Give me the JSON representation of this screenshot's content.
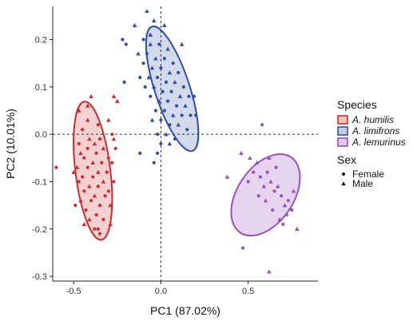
{
  "chart_data": {
    "type": "scatter",
    "title": "",
    "xlabel": "PC1 (87.02%)",
    "ylabel": "PC2 (10.01%)",
    "xlim": [
      -0.62,
      0.9
    ],
    "ylim": [
      -0.31,
      0.27
    ],
    "xticks": [
      -0.5,
      0.0,
      0.5
    ],
    "yticks": [
      -0.3,
      -0.2,
      -0.1,
      0.0,
      0.1,
      0.2
    ],
    "xtick_labels": [
      "-0.5",
      "0.0",
      "0.5"
    ],
    "ytick_labels": [
      "-0.3",
      "-0.2",
      "-0.1",
      "0.0",
      "0.1",
      "0.2"
    ],
    "reference_lines": {
      "x": 0.0,
      "y": 0.0,
      "style": "dashed"
    },
    "grid": false,
    "legend_placement": "right",
    "legend": {
      "species_title": "Species",
      "sex_title": "Sex",
      "sex_entries": [
        {
          "label": "Female",
          "shape": "circle"
        },
        {
          "label": "Male",
          "shape": "triangle"
        }
      ]
    },
    "series": [
      {
        "name": "A. humilis",
        "color": "#cc2e2e",
        "fill": "#f0c2c0",
        "ellipse": {
          "cx": -0.39,
          "cy": -0.077,
          "rx": 0.1,
          "ry": 0.147,
          "angle_deg": -7
        },
        "points": [
          {
            "x": -0.42,
            "y": 0.03,
            "sex": "male"
          },
          {
            "x": -0.36,
            "y": 0.02,
            "sex": "female"
          },
          {
            "x": -0.3,
            "y": 0.03,
            "sex": "male"
          },
          {
            "x": -0.45,
            "y": 0.01,
            "sex": "female"
          },
          {
            "x": -0.28,
            "y": 0.0,
            "sex": "female"
          },
          {
            "x": -0.41,
            "y": -0.01,
            "sex": "male"
          },
          {
            "x": -0.35,
            "y": -0.01,
            "sex": "female"
          },
          {
            "x": -0.47,
            "y": -0.02,
            "sex": "female"
          },
          {
            "x": -0.38,
            "y": -0.02,
            "sex": "male"
          },
          {
            "x": -0.42,
            "y": -0.03,
            "sex": "female"
          },
          {
            "x": -0.33,
            "y": -0.03,
            "sex": "male"
          },
          {
            "x": -0.46,
            "y": -0.04,
            "sex": "male"
          },
          {
            "x": -0.37,
            "y": -0.04,
            "sex": "female"
          },
          {
            "x": -0.3,
            "y": -0.05,
            "sex": "female"
          },
          {
            "x": -0.44,
            "y": -0.05,
            "sex": "female"
          },
          {
            "x": -0.39,
            "y": -0.06,
            "sex": "male"
          },
          {
            "x": -0.34,
            "y": -0.06,
            "sex": "female"
          },
          {
            "x": -0.48,
            "y": -0.07,
            "sex": "male"
          },
          {
            "x": -0.42,
            "y": -0.07,
            "sex": "female"
          },
          {
            "x": -0.36,
            "y": -0.08,
            "sex": "male"
          },
          {
            "x": -0.31,
            "y": -0.08,
            "sex": "female"
          },
          {
            "x": -0.45,
            "y": -0.09,
            "sex": "female"
          },
          {
            "x": -0.39,
            "y": -0.09,
            "sex": "female"
          },
          {
            "x": -0.33,
            "y": -0.1,
            "sex": "male"
          },
          {
            "x": -0.47,
            "y": -0.1,
            "sex": "female"
          },
          {
            "x": -0.41,
            "y": -0.11,
            "sex": "male"
          },
          {
            "x": -0.36,
            "y": -0.11,
            "sex": "female"
          },
          {
            "x": -0.3,
            "y": -0.12,
            "sex": "female"
          },
          {
            "x": -0.44,
            "y": -0.12,
            "sex": "female"
          },
          {
            "x": -0.38,
            "y": -0.13,
            "sex": "male"
          },
          {
            "x": -0.32,
            "y": -0.13,
            "sex": "female"
          },
          {
            "x": -0.46,
            "y": -0.14,
            "sex": "male"
          },
          {
            "x": -0.4,
            "y": -0.14,
            "sex": "female"
          },
          {
            "x": -0.35,
            "y": -0.15,
            "sex": "female"
          },
          {
            "x": -0.29,
            "y": -0.15,
            "sex": "male"
          },
          {
            "x": -0.43,
            "y": -0.16,
            "sex": "female"
          },
          {
            "x": -0.37,
            "y": -0.17,
            "sex": "female"
          },
          {
            "x": -0.41,
            "y": -0.18,
            "sex": "male"
          },
          {
            "x": -0.33,
            "y": -0.18,
            "sex": "female"
          },
          {
            "x": -0.38,
            "y": -0.2,
            "sex": "female"
          },
          {
            "x": -0.44,
            "y": -0.19,
            "sex": "male"
          },
          {
            "x": -0.49,
            "y": -0.15,
            "sex": "female"
          },
          {
            "x": -0.5,
            "y": -0.08,
            "sex": "male"
          },
          {
            "x": -0.35,
            "y": -0.21,
            "sex": "female"
          },
          {
            "x": -0.28,
            "y": -0.06,
            "sex": "female"
          },
          {
            "x": -0.27,
            "y": -0.1,
            "sex": "female"
          },
          {
            "x": -0.27,
            "y": -0.01,
            "sex": "male"
          },
          {
            "x": -0.29,
            "y": -0.19,
            "sex": "male"
          },
          {
            "x": -0.42,
            "y": 0.06,
            "sex": "male"
          },
          {
            "x": -0.4,
            "y": 0.08,
            "sex": "male"
          },
          {
            "x": -0.25,
            "y": 0.07,
            "sex": "male"
          },
          {
            "x": -0.27,
            "y": 0.08,
            "sex": "male"
          },
          {
            "x": -0.6,
            "y": -0.07,
            "sex": "female"
          },
          {
            "x": -0.36,
            "y": -0.2,
            "sex": "female"
          },
          {
            "x": -0.47,
            "y": 0.05,
            "sex": "male"
          },
          {
            "x": -0.26,
            "y": -0.03,
            "sex": "female"
          }
        ]
      },
      {
        "name": "A. limifrons",
        "color": "#2f4fa6",
        "fill": "#c3cde4",
        "ellipse": {
          "cx": 0.065,
          "cy": 0.096,
          "rx": 0.1,
          "ry": 0.138,
          "angle_deg": -18
        },
        "points": [
          {
            "x": -0.08,
            "y": 0.26,
            "sex": "male"
          },
          {
            "x": -0.04,
            "y": 0.24,
            "sex": "male"
          },
          {
            "x": 0.02,
            "y": 0.23,
            "sex": "male"
          },
          {
            "x": -0.1,
            "y": 0.2,
            "sex": "female"
          },
          {
            "x": -0.06,
            "y": 0.19,
            "sex": "male"
          },
          {
            "x": -0.01,
            "y": 0.19,
            "sex": "female"
          },
          {
            "x": 0.04,
            "y": 0.18,
            "sex": "male"
          },
          {
            "x": -0.13,
            "y": 0.17,
            "sex": "male"
          },
          {
            "x": -0.08,
            "y": 0.17,
            "sex": "female"
          },
          {
            "x": -0.03,
            "y": 0.16,
            "sex": "male"
          },
          {
            "x": 0.02,
            "y": 0.16,
            "sex": "female"
          },
          {
            "x": 0.07,
            "y": 0.15,
            "sex": "female"
          },
          {
            "x": -0.1,
            "y": 0.15,
            "sex": "female"
          },
          {
            "x": -0.05,
            "y": 0.14,
            "sex": "male"
          },
          {
            "x": 0.0,
            "y": 0.14,
            "sex": "female"
          },
          {
            "x": 0.05,
            "y": 0.13,
            "sex": "male"
          },
          {
            "x": 0.1,
            "y": 0.13,
            "sex": "female"
          },
          {
            "x": -0.12,
            "y": 0.12,
            "sex": "female"
          },
          {
            "x": -0.07,
            "y": 0.12,
            "sex": "male"
          },
          {
            "x": -0.02,
            "y": 0.12,
            "sex": "female"
          },
          {
            "x": 0.03,
            "y": 0.11,
            "sex": "female"
          },
          {
            "x": 0.08,
            "y": 0.11,
            "sex": "male"
          },
          {
            "x": 0.13,
            "y": 0.1,
            "sex": "female"
          },
          {
            "x": -0.09,
            "y": 0.1,
            "sex": "female"
          },
          {
            "x": -0.04,
            "y": 0.1,
            "sex": "male"
          },
          {
            "x": 0.01,
            "y": 0.09,
            "sex": "female"
          },
          {
            "x": 0.06,
            "y": 0.09,
            "sex": "female"
          },
          {
            "x": 0.11,
            "y": 0.08,
            "sex": "male"
          },
          {
            "x": 0.16,
            "y": 0.08,
            "sex": "female"
          },
          {
            "x": -0.06,
            "y": 0.08,
            "sex": "female"
          },
          {
            "x": -0.01,
            "y": 0.07,
            "sex": "male"
          },
          {
            "x": 0.04,
            "y": 0.07,
            "sex": "female"
          },
          {
            "x": 0.09,
            "y": 0.06,
            "sex": "female"
          },
          {
            "x": 0.14,
            "y": 0.06,
            "sex": "male"
          },
          {
            "x": -0.03,
            "y": 0.05,
            "sex": "female"
          },
          {
            "x": 0.02,
            "y": 0.05,
            "sex": "female"
          },
          {
            "x": 0.07,
            "y": 0.04,
            "sex": "male"
          },
          {
            "x": 0.12,
            "y": 0.04,
            "sex": "female"
          },
          {
            "x": 0.17,
            "y": 0.04,
            "sex": "female"
          },
          {
            "x": -0.05,
            "y": 0.03,
            "sex": "male"
          },
          {
            "x": 0.0,
            "y": 0.03,
            "sex": "female"
          },
          {
            "x": 0.05,
            "y": 0.02,
            "sex": "female"
          },
          {
            "x": 0.1,
            "y": 0.02,
            "sex": "male"
          },
          {
            "x": 0.15,
            "y": 0.01,
            "sex": "female"
          },
          {
            "x": -0.02,
            "y": 0.0,
            "sex": "female"
          },
          {
            "x": 0.03,
            "y": 0.0,
            "sex": "male"
          },
          {
            "x": 0.08,
            "y": -0.01,
            "sex": "female"
          },
          {
            "x": 0.0,
            "y": -0.02,
            "sex": "female"
          },
          {
            "x": 0.05,
            "y": -0.02,
            "sex": "male"
          },
          {
            "x": -0.22,
            "y": 0.2,
            "sex": "female"
          },
          {
            "x": -0.2,
            "y": 0.19,
            "sex": "female"
          },
          {
            "x": -0.21,
            "y": 0.11,
            "sex": "female"
          },
          {
            "x": -0.06,
            "y": 0.21,
            "sex": "male"
          },
          {
            "x": -0.15,
            "y": 0.23,
            "sex": "male"
          },
          {
            "x": -0.02,
            "y": -0.04,
            "sex": "female"
          },
          {
            "x": -0.12,
            "y": -0.04,
            "sex": "female"
          },
          {
            "x": 0.19,
            "y": 0.08,
            "sex": "female"
          },
          {
            "x": 0.2,
            "y": 0.04,
            "sex": "female"
          },
          {
            "x": -0.04,
            "y": -0.06,
            "sex": "female"
          },
          {
            "x": 0.12,
            "y": 0.19,
            "sex": "male"
          }
        ]
      },
      {
        "name": "A. lemurinus",
        "color": "#9c4fc0",
        "fill": "#dcc7e8",
        "ellipse": {
          "cx": 0.6,
          "cy": -0.128,
          "rx": 0.16,
          "ry": 0.096,
          "angle_deg": 34
        },
        "points": [
          {
            "x": 0.51,
            "y": -0.05,
            "sex": "male"
          },
          {
            "x": 0.53,
            "y": -0.08,
            "sex": "female"
          },
          {
            "x": 0.55,
            "y": -0.06,
            "sex": "male"
          },
          {
            "x": 0.57,
            "y": -0.09,
            "sex": "female"
          },
          {
            "x": 0.59,
            "y": -0.11,
            "sex": "male"
          },
          {
            "x": 0.61,
            "y": -0.08,
            "sex": "female"
          },
          {
            "x": 0.63,
            "y": -0.1,
            "sex": "male"
          },
          {
            "x": 0.65,
            "y": -0.12,
            "sex": "female"
          },
          {
            "x": 0.67,
            "y": -0.11,
            "sex": "male"
          },
          {
            "x": 0.69,
            "y": -0.13,
            "sex": "female"
          },
          {
            "x": 0.71,
            "y": -0.15,
            "sex": "male"
          },
          {
            "x": 0.73,
            "y": -0.14,
            "sex": "female"
          },
          {
            "x": 0.75,
            "y": -0.16,
            "sex": "female"
          },
          {
            "x": 0.6,
            "y": -0.14,
            "sex": "male"
          },
          {
            "x": 0.64,
            "y": -0.16,
            "sex": "female"
          },
          {
            "x": 0.68,
            "y": -0.18,
            "sex": "male"
          },
          {
            "x": 0.72,
            "y": -0.17,
            "sex": "female"
          },
          {
            "x": 0.56,
            "y": -0.13,
            "sex": "female"
          },
          {
            "x": 0.62,
            "y": -0.05,
            "sex": "male"
          },
          {
            "x": 0.66,
            "y": -0.07,
            "sex": "female"
          },
          {
            "x": 0.76,
            "y": -0.12,
            "sex": "male"
          },
          {
            "x": 0.5,
            "y": -0.1,
            "sex": "female"
          },
          {
            "x": 0.7,
            "y": -0.19,
            "sex": "female"
          },
          {
            "x": 0.38,
            "y": -0.09,
            "sex": "male"
          },
          {
            "x": 0.46,
            "y": -0.04,
            "sex": "male"
          },
          {
            "x": 0.47,
            "y": -0.24,
            "sex": "female"
          },
          {
            "x": 0.62,
            "y": -0.29,
            "sex": "male"
          },
          {
            "x": 0.58,
            "y": 0.02,
            "sex": "female"
          },
          {
            "x": 0.78,
            "y": -0.2,
            "sex": "male"
          }
        ]
      }
    ]
  }
}
